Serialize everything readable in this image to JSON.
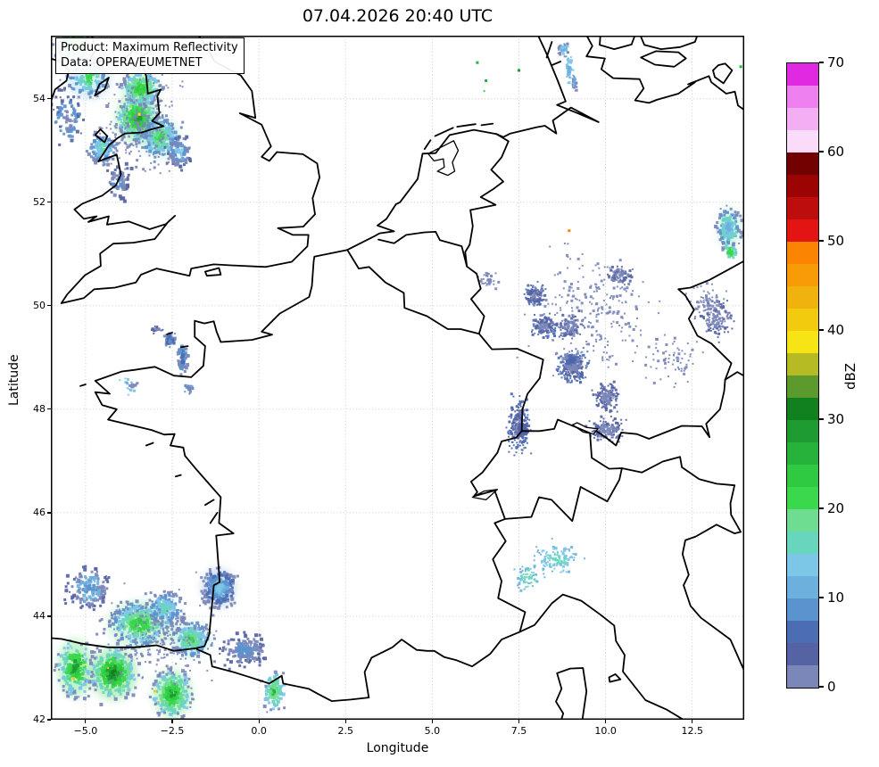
{
  "figure": {
    "title": "07.04.2026 20:40 UTC"
  },
  "annotation": {
    "line1": "Product: Maximum Reflectivity",
    "line2": "Data: OPERA/EUMETNET"
  },
  "axes": {
    "xlabel": "Longitude",
    "ylabel": "Latitude",
    "extent": {
      "lon_min": -6.0,
      "lon_max": 14.0,
      "lat_min": 42.0,
      "lat_max": 55.22
    },
    "x_ticks": [
      {
        "lon": -5.0,
        "label": "−5.0"
      },
      {
        "lon": -2.5,
        "label": "−2.5"
      },
      {
        "lon": 0.0,
        "label": "0.0"
      },
      {
        "lon": 2.5,
        "label": "2.5"
      },
      {
        "lon": 5.0,
        "label": "5.0"
      },
      {
        "lon": 7.5,
        "label": "7.5"
      },
      {
        "lon": 10.0,
        "label": "10.0"
      },
      {
        "lon": 12.5,
        "label": "12.5"
      }
    ],
    "y_ticks": [
      {
        "lat": 42,
        "label": "42"
      },
      {
        "lat": 44,
        "label": "44"
      },
      {
        "lat": 46,
        "label": "46"
      },
      {
        "lat": 48,
        "label": "48"
      },
      {
        "lat": 50,
        "label": "50"
      },
      {
        "lat": 52,
        "label": "52"
      },
      {
        "lat": 54,
        "label": "54"
      }
    ],
    "grid_lons": [
      -5.0,
      -2.5,
      0.0,
      2.5,
      5.0,
      7.5,
      10.0,
      12.5
    ],
    "grid_lats": [
      44,
      46,
      48,
      50,
      52,
      54
    ],
    "grid_color": "#bcbcbc"
  },
  "colorbar": {
    "label": "dBZ",
    "vmin": 0,
    "vmax": 70,
    "step": 2.5,
    "ticks": [
      0,
      10,
      20,
      30,
      40,
      50,
      60,
      70
    ],
    "levels": [
      "#7b87b8",
      "#5563a4",
      "#4a6db4",
      "#5b93cf",
      "#6cb0dd",
      "#7cc6e8",
      "#68d6bd",
      "#6edd92",
      "#3ad84d",
      "#2fca41",
      "#27b33b",
      "#1f9c31",
      "#11801f",
      "#5d9a2e",
      "#b6bb24",
      "#f6e414",
      "#f2ca0e",
      "#f0b30d",
      "#f79c07",
      "#fb8402",
      "#e31414",
      "#bd0d0d",
      "#9c0404",
      "#740101",
      "#fadcfa",
      "#f4aef4",
      "#ef80ef",
      "#df2ae2"
    ]
  },
  "radar_echoes": {
    "palette": {
      "slate": "#7b87b8",
      "slate2": "#5563a4",
      "steel": "#4a6db4",
      "blue": "#5b93cf",
      "sky": "#6cb0dd",
      "lblue": "#7cc6e8",
      "aqua": "#68d6bd",
      "lgreen": "#6edd92",
      "green": "#3ad84d",
      "green2": "#2fca41",
      "green3": "#27b33b",
      "dgreen": "#1f9c31",
      "dgreen2": "#11801f",
      "olive": "#5d9a2e",
      "yellow": "#f6e414",
      "gold": "#f2ca0e",
      "orange": "#fb8402"
    },
    "clusters": [
      {
        "name": "uk-core-1",
        "lon": -3.5,
        "lat": 53.62,
        "sx": 0.55,
        "sy": 0.42,
        "n": 420,
        "colors": [
          "dgreen",
          "green2",
          "green",
          "lgreen",
          "aqua",
          "lblue",
          "slate"
        ],
        "soft": true
      },
      {
        "name": "uk-core-2",
        "lon": -2.85,
        "lat": 53.25,
        "sx": 0.5,
        "sy": 0.35,
        "n": 280,
        "colors": [
          "green",
          "lgreen",
          "aqua",
          "lblue",
          "blue",
          "slate"
        ],
        "soft": true
      },
      {
        "name": "uk-core-3",
        "lon": -3.4,
        "lat": 54.2,
        "sx": 0.5,
        "sy": 0.3,
        "n": 240,
        "colors": [
          "green2",
          "green",
          "lgreen",
          "aqua",
          "lblue",
          "slate"
        ],
        "soft": true
      },
      {
        "name": "uk-west",
        "lon": -4.5,
        "lat": 53.05,
        "sx": 0.4,
        "sy": 0.3,
        "n": 150,
        "colors": [
          "aqua",
          "lblue",
          "blue",
          "slate"
        ]
      },
      {
        "name": "uk-nw",
        "lon": -4.9,
        "lat": 54.4,
        "sx": 0.55,
        "sy": 0.35,
        "n": 160,
        "colors": [
          "green",
          "aqua",
          "lblue",
          "blue",
          "slate"
        ],
        "soft": true
      },
      {
        "name": "uk-top",
        "lon": -5.35,
        "lat": 55.05,
        "sx": 0.45,
        "sy": 0.25,
        "n": 140,
        "colors": [
          "green2",
          "green",
          "lgreen",
          "aqua",
          "slate"
        ],
        "soft": true
      },
      {
        "name": "uk-east-fringe",
        "lon": -2.3,
        "lat": 52.95,
        "sx": 0.35,
        "sy": 0.3,
        "n": 90,
        "colors": [
          "lblue",
          "blue",
          "slate",
          "slate2"
        ]
      },
      {
        "name": "uk-cardigan",
        "lon": -4.05,
        "lat": 52.4,
        "sx": 0.3,
        "sy": 0.3,
        "n": 70,
        "colors": [
          "blue",
          "slate",
          "slate2"
        ]
      },
      {
        "name": "uk-sea-fringe",
        "lon": -5.5,
        "lat": 53.6,
        "sx": 0.4,
        "sy": 0.5,
        "n": 90,
        "colors": [
          "slate",
          "blue",
          "slate2"
        ]
      },
      {
        "name": "uk-speckle",
        "lon": -3.3,
        "lat": 53.5,
        "sx": 1.1,
        "sy": 0.9,
        "n": 200,
        "colors": [
          "slate"
        ],
        "size": 2
      },
      {
        "name": "brittany-specks",
        "lon": -3.7,
        "lat": 48.45,
        "sx": 0.25,
        "sy": 0.15,
        "n": 25,
        "colors": [
          "slate",
          "lblue"
        ],
        "size": 2
      },
      {
        "name": "channel-1",
        "lon": -2.55,
        "lat": 49.35,
        "sx": 0.16,
        "sy": 0.12,
        "n": 60,
        "colors": [
          "blue",
          "steel",
          "slate"
        ]
      },
      {
        "name": "channel-2",
        "lon": -2.2,
        "lat": 49.0,
        "sx": 0.14,
        "sy": 0.28,
        "n": 80,
        "colors": [
          "steel",
          "blue",
          "slate"
        ]
      },
      {
        "name": "channel-3",
        "lon": -2.95,
        "lat": 49.55,
        "sx": 0.18,
        "sy": 0.07,
        "n": 30,
        "colors": [
          "slate",
          "slate2"
        ],
        "size": 2
      },
      {
        "name": "channel-4",
        "lon": -2.0,
        "lat": 48.4,
        "sx": 0.12,
        "sy": 0.1,
        "n": 25,
        "colors": [
          "slate",
          "blue"
        ],
        "size": 2
      },
      {
        "name": "biscay-core-1",
        "lon": -4.2,
        "lat": 42.9,
        "sx": 0.6,
        "sy": 0.45,
        "n": 400,
        "colors": [
          "dgreen2",
          "dgreen",
          "green2",
          "green",
          "lgreen",
          "aqua",
          "lblue",
          "slate"
        ],
        "soft": true
      },
      {
        "name": "biscay-core-2",
        "lon": -2.5,
        "lat": 42.5,
        "sx": 0.5,
        "sy": 0.4,
        "n": 300,
        "colors": [
          "dgreen",
          "green2",
          "green",
          "lgreen",
          "aqua",
          "lblue",
          "slate"
        ],
        "soft": true
      },
      {
        "name": "biscay-band",
        "lon": -3.4,
        "lat": 43.85,
        "sx": 0.85,
        "sy": 0.4,
        "n": 380,
        "colors": [
          "green2",
          "green",
          "lgreen",
          "aqua",
          "lblue",
          "blue",
          "slate"
        ],
        "soft": true
      },
      {
        "name": "basque",
        "lon": -1.95,
        "lat": 43.55,
        "sx": 0.5,
        "sy": 0.3,
        "n": 230,
        "colors": [
          "green",
          "lgreen",
          "aqua",
          "lblue",
          "blue",
          "slate"
        ],
        "soft": true
      },
      {
        "name": "landes-blob",
        "lon": -1.15,
        "lat": 44.55,
        "sx": 0.42,
        "sy": 0.33,
        "n": 260,
        "colors": [
          "lblue",
          "sky",
          "blue",
          "steel",
          "slate"
        ],
        "soft": true
      },
      {
        "name": "gascony-trail",
        "lon": -0.4,
        "lat": 43.35,
        "sx": 0.6,
        "sy": 0.28,
        "n": 170,
        "colors": [
          "blue",
          "slate",
          "slate2"
        ]
      },
      {
        "name": "biscay-sea",
        "lon": -4.9,
        "lat": 44.55,
        "sx": 0.55,
        "sy": 0.4,
        "n": 160,
        "colors": [
          "blue",
          "sky",
          "slate",
          "slate2"
        ]
      },
      {
        "name": "biscay-mid",
        "lon": -2.7,
        "lat": 44.15,
        "sx": 0.5,
        "sy": 0.3,
        "n": 180,
        "colors": [
          "aqua",
          "lblue",
          "blue",
          "slate"
        ]
      },
      {
        "name": "pyrenees-east",
        "lon": 0.45,
        "lat": 42.55,
        "sx": 0.3,
        "sy": 0.35,
        "n": 110,
        "colors": [
          "green3",
          "lgreen",
          "aqua",
          "lblue",
          "slate"
        ]
      },
      {
        "name": "cantabria-west",
        "lon": -5.3,
        "lat": 43.0,
        "sx": 0.45,
        "sy": 0.5,
        "n": 220,
        "colors": [
          "dgreen",
          "green2",
          "green",
          "aqua",
          "lblue",
          "slate"
        ],
        "soft": true
      },
      {
        "name": "biscay-speckle",
        "lon": -2.8,
        "lat": 43.6,
        "sx": 1.6,
        "sy": 0.8,
        "n": 220,
        "colors": [
          "slate"
        ],
        "size": 2
      },
      {
        "name": "de-frankfurt",
        "lon": 7.95,
        "lat": 50.2,
        "sx": 0.3,
        "sy": 0.2,
        "n": 130,
        "colors": [
          "slate",
          "slate2",
          "steel"
        ],
        "size": 2
      },
      {
        "name": "de-mannheim",
        "lon": 8.25,
        "lat": 49.6,
        "sx": 0.35,
        "sy": 0.22,
        "n": 140,
        "colors": [
          "slate",
          "slate2",
          "steel"
        ],
        "size": 2
      },
      {
        "name": "de-heilbronn",
        "lon": 9.0,
        "lat": 49.6,
        "sx": 0.3,
        "sy": 0.22,
        "n": 120,
        "colors": [
          "slate",
          "slate2"
        ],
        "size": 2
      },
      {
        "name": "de-stuttgart",
        "lon": 9.1,
        "lat": 48.8,
        "sx": 0.4,
        "sy": 0.3,
        "n": 240,
        "colors": [
          "slate",
          "slate2",
          "steel"
        ],
        "size": 2
      },
      {
        "name": "de-stuttgart-dense",
        "lon": 9.0,
        "lat": 48.95,
        "sx": 0.18,
        "sy": 0.12,
        "n": 80,
        "colors": [
          "slate2",
          "steel",
          "slate"
        ],
        "size": 3
      },
      {
        "name": "de-ulm",
        "lon": 10.05,
        "lat": 48.25,
        "sx": 0.3,
        "sy": 0.25,
        "n": 170,
        "colors": [
          "slate",
          "slate2"
        ],
        "size": 2
      },
      {
        "name": "rhine-valley",
        "lon": 7.5,
        "lat": 47.7,
        "sx": 0.28,
        "sy": 0.45,
        "n": 260,
        "colors": [
          "slate",
          "slate2",
          "steel"
        ],
        "size": 2
      },
      {
        "name": "rhine-dense",
        "lon": 7.62,
        "lat": 47.62,
        "sx": 0.13,
        "sy": 0.1,
        "n": 90,
        "colors": [
          "steel",
          "slate2"
        ],
        "size": 3
      },
      {
        "name": "allgaeu",
        "lon": 10.05,
        "lat": 47.6,
        "sx": 0.45,
        "sy": 0.2,
        "n": 150,
        "colors": [
          "slate",
          "slate2"
        ],
        "size": 2
      },
      {
        "name": "thuringia",
        "lon": 10.4,
        "lat": 50.6,
        "sx": 0.3,
        "sy": 0.15,
        "n": 80,
        "colors": [
          "slate",
          "slate2"
        ],
        "size": 2
      },
      {
        "name": "bavarian-forest",
        "lon": 13.2,
        "lat": 49.75,
        "sx": 0.45,
        "sy": 0.3,
        "n": 140,
        "colors": [
          "slate",
          "slate2"
        ],
        "size": 2
      },
      {
        "name": "de-wide-speckle",
        "lon": 9.6,
        "lat": 49.9,
        "sx": 1.7,
        "sy": 1.1,
        "n": 260,
        "colors": [
          "slate"
        ],
        "size": 2
      },
      {
        "name": "de-east-speckle",
        "lon": 11.9,
        "lat": 49.0,
        "sx": 0.8,
        "sy": 0.5,
        "n": 70,
        "colors": [
          "slate"
        ],
        "size": 2
      },
      {
        "name": "de-cz-speckle",
        "lon": 12.9,
        "lat": 50.1,
        "sx": 0.5,
        "sy": 0.3,
        "n": 60,
        "colors": [
          "slate"
        ],
        "size": 2
      },
      {
        "name": "cologne-specks",
        "lon": 6.6,
        "lat": 50.5,
        "sx": 0.3,
        "sy": 0.2,
        "n": 40,
        "colors": [
          "slate"
        ],
        "size": 2
      },
      {
        "name": "jutland-streak-1",
        "lon": 8.8,
        "lat": 54.95,
        "sx": 0.15,
        "sy": 0.12,
        "n": 50,
        "colors": [
          "sky",
          "lblue",
          "slate"
        ],
        "size": 2
      },
      {
        "name": "jutland-streak-2",
        "lon": 8.95,
        "lat": 54.6,
        "sx": 0.1,
        "sy": 0.25,
        "n": 60,
        "colors": [
          "sky",
          "lblue"
        ],
        "size": 2
      },
      {
        "name": "jutland-streak-3",
        "lon": 9.1,
        "lat": 54.3,
        "sx": 0.08,
        "sy": 0.15,
        "n": 35,
        "colors": [
          "sky",
          "slate"
        ],
        "size": 2
      },
      {
        "name": "lausitz-patch",
        "lon": 13.55,
        "lat": 51.5,
        "sx": 0.3,
        "sy": 0.35,
        "n": 200,
        "colors": [
          "sky",
          "lblue",
          "aqua",
          "blue",
          "slate"
        ],
        "soft": true
      },
      {
        "name": "lausitz-green",
        "lon": 13.6,
        "lat": 51.05,
        "sx": 0.15,
        "sy": 0.1,
        "n": 40,
        "colors": [
          "green",
          "aqua"
        ]
      },
      {
        "name": "po-valley",
        "lon": 8.6,
        "lat": 45.1,
        "sx": 0.6,
        "sy": 0.32,
        "n": 130,
        "colors": [
          "aqua",
          "lblue",
          "sky"
        ],
        "size": 2
      },
      {
        "name": "piedmont",
        "lon": 7.75,
        "lat": 44.75,
        "sx": 0.35,
        "sy": 0.25,
        "n": 60,
        "colors": [
          "aqua",
          "sky"
        ],
        "size": 2
      }
    ],
    "singles": [
      {
        "lon": -3.45,
        "lat": 53.7,
        "color": "yellow",
        "size": 3
      },
      {
        "lon": -3.2,
        "lat": 54.15,
        "color": "yellow",
        "size": 2
      },
      {
        "lon": -5.35,
        "lat": 42.8,
        "color": "gold",
        "size": 3
      },
      {
        "lon": -5.05,
        "lat": 43.05,
        "color": "yellow",
        "size": 2
      },
      {
        "lon": -3.0,
        "lat": 42.55,
        "color": "gold",
        "size": 3
      },
      {
        "lon": -2.85,
        "lat": 42.35,
        "color": "yellow",
        "size": 2
      },
      {
        "lon": -4.35,
        "lat": 43.0,
        "color": "gold",
        "size": 2
      },
      {
        "lon": -2.6,
        "lat": 43.35,
        "color": "gold",
        "size": 2
      },
      {
        "lon": 6.3,
        "lat": 54.7,
        "color": "green3",
        "size": 3
      },
      {
        "lon": 6.55,
        "lat": 54.35,
        "color": "green3",
        "size": 3
      },
      {
        "lon": 7.5,
        "lat": 54.55,
        "color": "dgreen",
        "size": 3
      },
      {
        "lon": 6.5,
        "lat": 54.15,
        "color": "green",
        "size": 2
      },
      {
        "lon": 8.95,
        "lat": 51.45,
        "color": "orange",
        "size": 3
      },
      {
        "lon": 13.9,
        "lat": 54.62,
        "color": "green3",
        "size": 3
      }
    ]
  }
}
